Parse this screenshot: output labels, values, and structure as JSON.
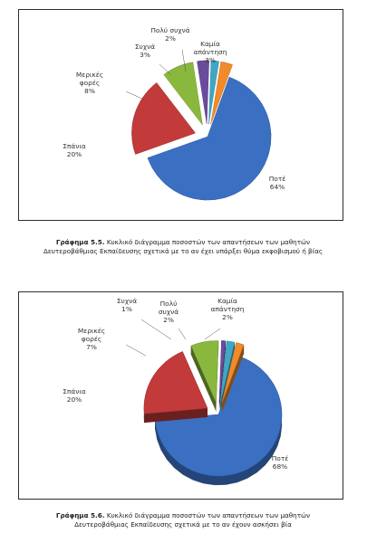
{
  "chart_data": [
    {
      "type": "pie",
      "categories": [
        "Ποτέ",
        "Σπάνια",
        "Μερικές φορές",
        "Συχνά",
        "Πολύ συχνά",
        "Καμία απάντηση"
      ],
      "values": [
        64,
        20,
        8,
        3,
        2,
        3
      ],
      "value_labels": [
        "64%",
        "20%",
        "8%",
        "3%",
        "2%",
        "3%"
      ],
      "colors": [
        "#3a6fc2",
        "#c23a3a",
        "#8ab83e",
        "#6a4c9c",
        "#3fa7c4",
        "#f08a2a"
      ],
      "style": "3d exploded"
    },
    {
      "type": "pie",
      "categories": [
        "Ποτέ",
        "Σπάνια",
        "Μερικές φορές",
        "Συχνά",
        "Πολύ συχνά",
        "Καμία απάντηση"
      ],
      "values": [
        68,
        20,
        7,
        1,
        2,
        2
      ],
      "value_labels": [
        "68%",
        "20%",
        "7%",
        "1%",
        "2%",
        "2%"
      ],
      "colors": [
        "#3a6fc2",
        "#c23a3a",
        "#8ab83e",
        "#6a4c9c",
        "#3fa7c4",
        "#f08a2a"
      ],
      "style": "3d exploded"
    }
  ],
  "captions": [
    {
      "number": "Γράφημα 5.5.",
      "line1": "Κυκλικό διάγραμμα ποσοστών των απαντήσεων των μαθητών",
      "line2": "Δευτεροβάθμιας Εκπαίδευσης σχετικά με το αν έχει υπάρξει θύμα εκφοβισμού ή βίας"
    },
    {
      "number": "Γράφημα 5.6.",
      "line1": "Κυκλικό διάγραμμα ποσοστών των απαντήσεων των μαθητών",
      "line2": "Δευτεροβάθμιας Εκπαίδευσης σχετικά με το αν έχουν ασκήσει βία"
    }
  ]
}
